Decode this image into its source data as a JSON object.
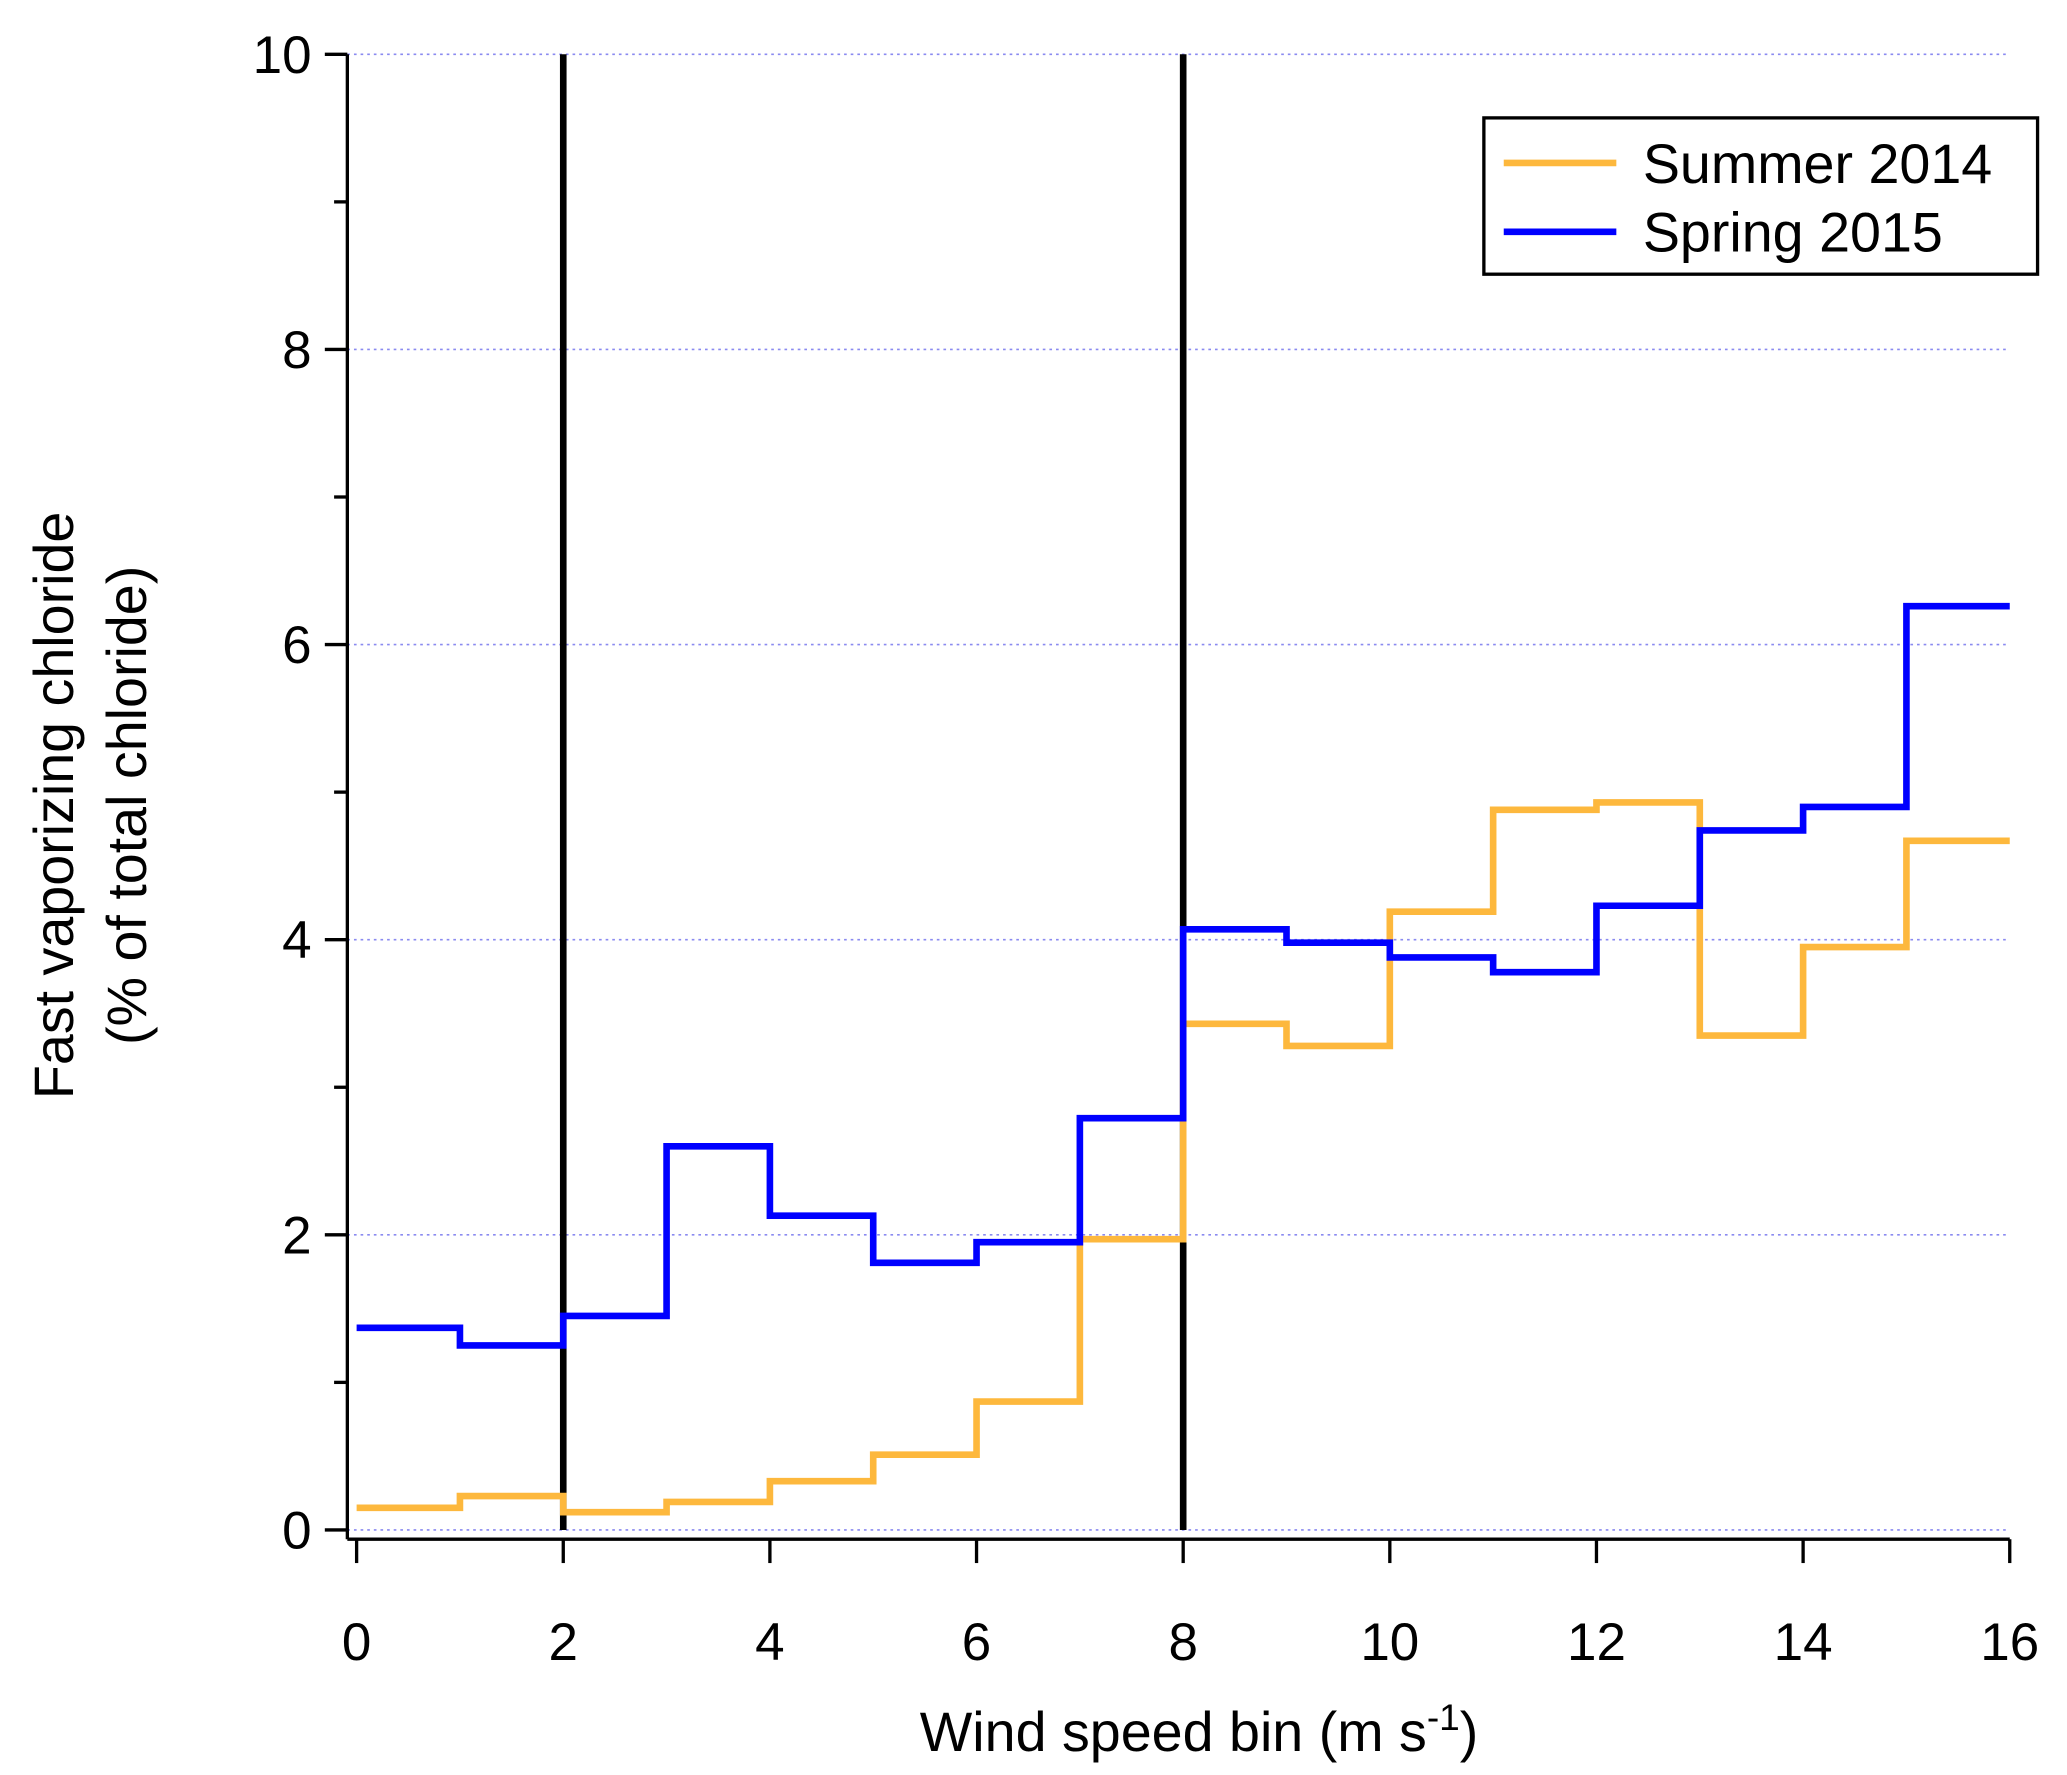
{
  "chart_data": {
    "type": "line",
    "step": true,
    "title": "",
    "xlabel": "Wind speed bin (m s",
    "xlabel_sup": "-1",
    "xlabel_end": ")",
    "ylabel_line1": "Fast vaporizing chloride",
    "ylabel_line2": "(% of total chloride)",
    "xlim": [
      0,
      16
    ],
    "ylim": [
      0,
      10
    ],
    "xticks": [
      0,
      2,
      4,
      6,
      8,
      10,
      12,
      14,
      16
    ],
    "yticks": [
      0,
      2,
      4,
      6,
      8,
      10
    ],
    "grid": "horizontal dotted",
    "vertical_markers": [
      2,
      8
    ],
    "legend_position": "top-right",
    "bin_edges": [
      0,
      1,
      2,
      3,
      4,
      5,
      6,
      7,
      8,
      9,
      10,
      11,
      12,
      13,
      14,
      15,
      16
    ],
    "series": [
      {
        "name": "Summer 2014",
        "color": "#FDB83D",
        "values": [
          0.15,
          0.23,
          0.12,
          0.19,
          0.33,
          0.51,
          0.87,
          1.97,
          3.43,
          3.28,
          4.19,
          4.88,
          4.93,
          3.35,
          3.95,
          4.67
        ]
      },
      {
        "name": "Spring 2015",
        "color": "#0000FF",
        "values": [
          1.37,
          1.25,
          1.45,
          2.6,
          2.13,
          1.81,
          1.95,
          2.79,
          4.07,
          3.98,
          3.88,
          3.78,
          4.23,
          4.74,
          4.9,
          6.26
        ]
      }
    ]
  }
}
